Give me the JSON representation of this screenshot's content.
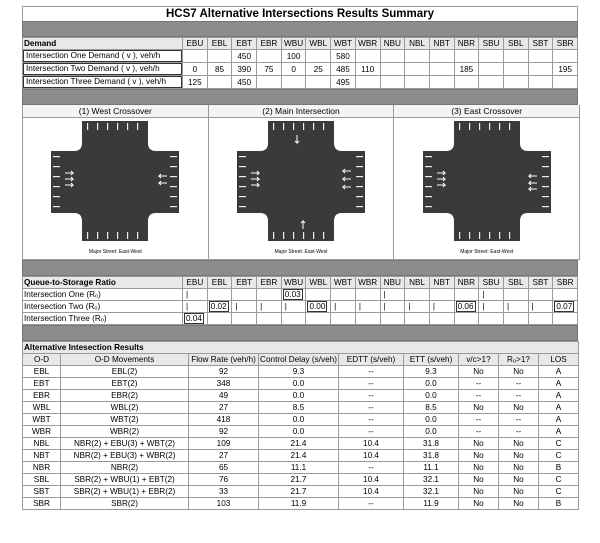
{
  "title": "HCS7 Alternative Intersections Results Summary",
  "movements": [
    "EBU",
    "EBL",
    "EBT",
    "EBR",
    "WBU",
    "WBL",
    "WBT",
    "WBR",
    "NBU",
    "NBL",
    "NBT",
    "NBR",
    "SBU",
    "SBL",
    "SBT",
    "SBR"
  ],
  "demand": {
    "header": "Demand",
    "rows": [
      {
        "label": "Intersection One Demand ( v ), veh/h",
        "values": [
          "",
          "",
          "450",
          "",
          "100",
          "",
          "580",
          "",
          "",
          "",
          "",
          "",
          "",
          "",
          "",
          ""
        ]
      },
      {
        "label": "Intersection Two Demand ( v ), veh/h",
        "values": [
          "0",
          "85",
          "390",
          "75",
          "0",
          "25",
          "485",
          "110",
          "",
          "",
          "",
          "185",
          "",
          "",
          "",
          "195"
        ]
      },
      {
        "label": "Intersection Three Demand ( v ), veh/h",
        "values": [
          "125",
          "",
          "450",
          "",
          "",
          "",
          "495",
          "",
          "",
          "",
          "",
          "",
          "",
          "",
          "",
          ""
        ]
      }
    ]
  },
  "diagrams": [
    {
      "title": "(1) West Crossover",
      "caption": "Major Street: East-West"
    },
    {
      "title": "(2) Main Intersection",
      "caption": "Major Street: East-West"
    },
    {
      "title": "(3) East Crossover",
      "caption": "Major Street: East-West"
    }
  ],
  "queue": {
    "header": "Queue-to-Storage Ratio",
    "rows": [
      {
        "label": "Intersection One (Rₒ)",
        "values": [
          "|",
          "",
          "",
          "",
          "0.03",
          "",
          "",
          "",
          "|",
          "",
          "",
          "",
          "|",
          "",
          "",
          ""
        ]
      },
      {
        "label": "Intersection Two (Rₒ)",
        "values": [
          "|",
          "0.02",
          "|",
          "|",
          "|",
          "0.00",
          "|",
          "|",
          "|",
          "|",
          "|",
          "0.06",
          "|",
          "|",
          "|",
          "0.07"
        ]
      },
      {
        "label": "Intersection Three (Rₒ)",
        "values": [
          "0.04",
          "",
          "",
          "",
          "",
          "",
          "",
          "",
          "",
          "",
          "",
          "",
          "",
          "",
          "",
          ""
        ]
      }
    ]
  },
  "results": {
    "header": "Alternative Intesection Results",
    "columns": [
      "O-D",
      "O-D Movements",
      "Flow Rate (veh/h)",
      "Control Delay (s/veh)",
      "EDTT (s/veh)",
      "ETT (s/veh)",
      "v/c>1?",
      "Rₒ>1?",
      "LOS"
    ],
    "rows": [
      [
        "EBL",
        "EBL(2)",
        "92",
        "9.3",
        "--",
        "9.3",
        "No",
        "No",
        "A"
      ],
      [
        "EBT",
        "EBT(2)",
        "348",
        "0.0",
        "--",
        "0.0",
        "--",
        "--",
        "A"
      ],
      [
        "EBR",
        "EBR(2)",
        "49",
        "0.0",
        "--",
        "0.0",
        "--",
        "--",
        "A"
      ],
      [
        "WBL",
        "WBL(2)",
        "27",
        "8.5",
        "--",
        "8.5",
        "No",
        "No",
        "A"
      ],
      [
        "WBT",
        "WBT(2)",
        "418",
        "0.0",
        "--",
        "0.0",
        "--",
        "--",
        "A"
      ],
      [
        "WBR",
        "WBR(2)",
        "92",
        "0.0",
        "--",
        "0.0",
        "--",
        "--",
        "A"
      ],
      [
        "NBL",
        "NBR(2) + EBU(3) + WBT(2)",
        "109",
        "21.4",
        "10.4",
        "31.8",
        "No",
        "No",
        "C"
      ],
      [
        "NBT",
        "NBR(2) + EBU(3) + WBR(2)",
        "27",
        "21.4",
        "10.4",
        "31.8",
        "No",
        "No",
        "C"
      ],
      [
        "NBR",
        "NBR(2)",
        "65",
        "11.1",
        "--",
        "11.1",
        "No",
        "No",
        "B"
      ],
      [
        "SBL",
        "SBR(2) + WBU(1) + EBT(2)",
        "76",
        "21.7",
        "10.4",
        "32.1",
        "No",
        "No",
        "C"
      ],
      [
        "SBT",
        "SBR(2) + WBU(1) + EBR(2)",
        "33",
        "21.7",
        "10.4",
        "32.1",
        "No",
        "No",
        "C"
      ],
      [
        "SBR",
        "SBR(2)",
        "103",
        "11.9",
        "--",
        "11.9",
        "No",
        "No",
        "B"
      ]
    ]
  }
}
